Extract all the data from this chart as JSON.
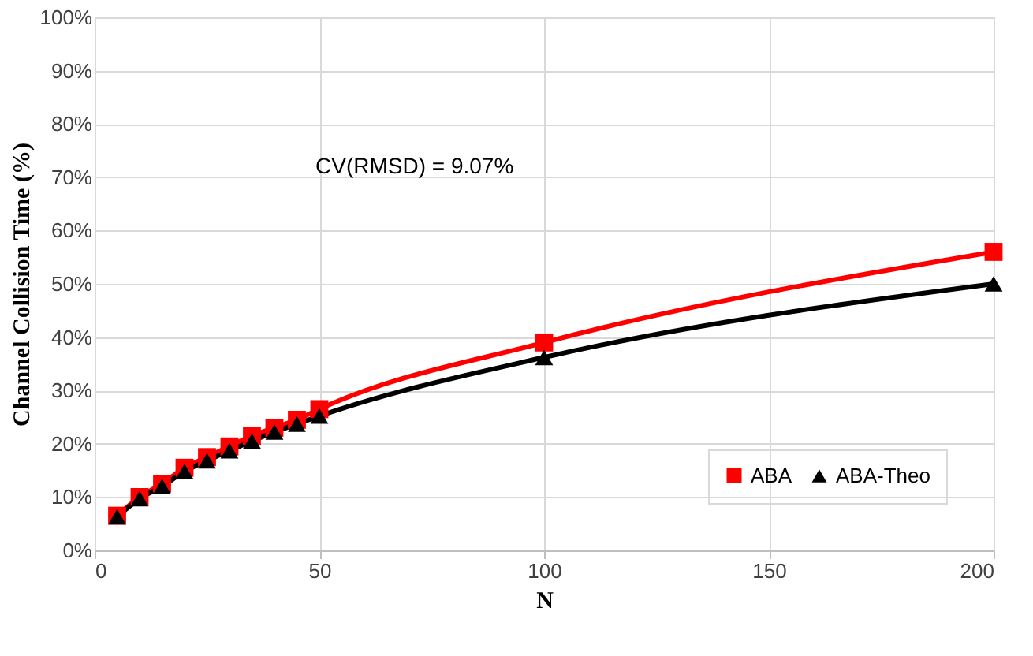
{
  "chart_data": {
    "type": "line",
    "xlabel": "N",
    "ylabel": "Channel Collision Time (%)",
    "x": [
      5,
      10,
      15,
      20,
      25,
      30,
      35,
      40,
      45,
      50,
      100,
      200
    ],
    "series": [
      {
        "name": "ABA",
        "color": "#ff0000",
        "marker": "square",
        "values": [
          6.5,
          10,
          12.5,
          15.5,
          17.5,
          19.5,
          21.5,
          23,
          24.5,
          26.5,
          39,
          56
        ]
      },
      {
        "name": "ABA-Theo",
        "color": "#000000",
        "marker": "triangle",
        "values": [
          6.3,
          9.7,
          12,
          14.8,
          16.8,
          18.7,
          20.5,
          22.2,
          23.7,
          25.2,
          36.2,
          50
        ]
      }
    ],
    "xlim": [
      0,
      200
    ],
    "xticks": [
      0,
      50,
      100,
      150,
      200
    ],
    "ylim": [
      0,
      100
    ],
    "yticks": [
      {
        "value": 0,
        "label": "0%"
      },
      {
        "value": 10,
        "label": "10%"
      },
      {
        "value": 20,
        "label": "20%"
      },
      {
        "value": 30,
        "label": "30%"
      },
      {
        "value": 40,
        "label": "40%"
      },
      {
        "value": 50,
        "label": "50%"
      },
      {
        "value": 60,
        "label": "60%"
      },
      {
        "value": 70,
        "label": "70%"
      },
      {
        "value": 80,
        "label": "80%"
      },
      {
        "value": 90,
        "label": "90%"
      },
      {
        "value": 100,
        "label": "100%"
      }
    ],
    "annotations": [
      "CV(RMSD) = 9.07%"
    ],
    "grid": true,
    "legend": "bottom right",
    "line_style": "solid"
  }
}
